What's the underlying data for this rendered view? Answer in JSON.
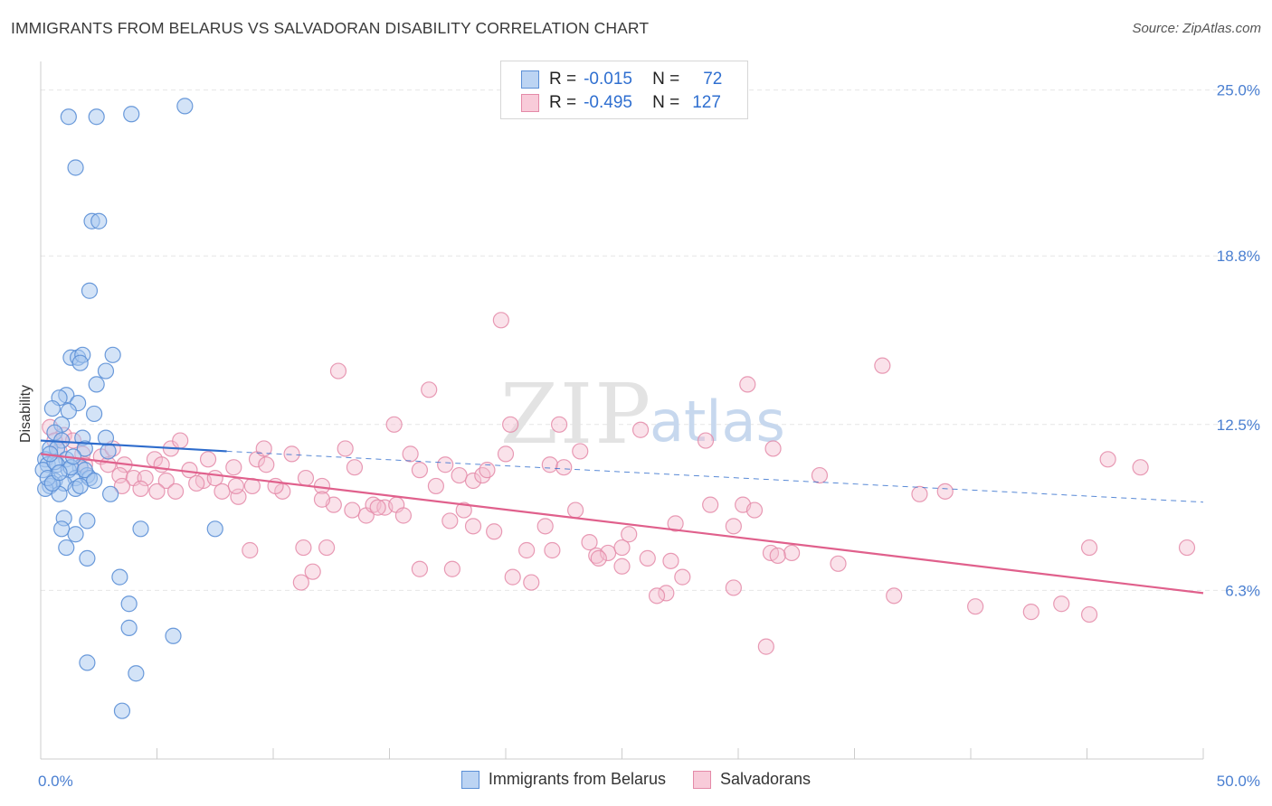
{
  "title": "IMMIGRANTS FROM BELARUS VS SALVADORAN DISABILITY CORRELATION CHART",
  "source": "Source: ZipAtlas.com",
  "watermark": {
    "zip": "ZIP",
    "atlas": "atlas"
  },
  "colors": {
    "blue_fill": "#a8c8f0",
    "blue_stroke": "#5b8fd6",
    "blue_line": "#2e6ccc",
    "pink_fill": "#f5bfd0",
    "pink_stroke": "#e48aa8",
    "pink_line": "#e0608c",
    "grid": "#e6e6e6",
    "tick_text": "#4a7fd1"
  },
  "legend": {
    "r_label": "R =",
    "n_label": "N =",
    "series": [
      {
        "r": "-0.015",
        "n": "72"
      },
      {
        "r": "-0.495",
        "n": "127"
      }
    ]
  },
  "bottom_legend": [
    "Immigrants from Belarus",
    "Salvadorans"
  ],
  "chart_data": {
    "type": "scatter",
    "title": "IMMIGRANTS FROM BELARUS VS SALVADORAN DISABILITY CORRELATION CHART",
    "xlabel": "",
    "ylabel": "Disability",
    "xlim": [
      0,
      50
    ],
    "ylim": [
      0,
      26
    ],
    "x_tick_labels": [
      "0.0%",
      "50.0%"
    ],
    "y_ticks": [
      6.3,
      12.5,
      18.8,
      25.0
    ],
    "y_tick_labels": [
      "6.3%",
      "12.5%",
      "18.8%",
      "25.0%"
    ],
    "grid": true,
    "legend_position": "top-center",
    "series": [
      {
        "name": "Immigrants from Belarus",
        "r": -0.015,
        "n": 72,
        "trend_solid": [
          [
            0,
            11.9
          ],
          [
            8,
            11.5
          ]
        ],
        "trend_dashed": [
          [
            8,
            11.5
          ],
          [
            50,
            9.6
          ]
        ],
        "points": [
          [
            1.2,
            24.0
          ],
          [
            2.4,
            24.0
          ],
          [
            3.9,
            24.1
          ],
          [
            6.2,
            24.4
          ],
          [
            1.5,
            22.1
          ],
          [
            2.2,
            20.1
          ],
          [
            2.5,
            20.1
          ],
          [
            2.1,
            17.5
          ],
          [
            1.3,
            15.0
          ],
          [
            1.6,
            15.0
          ],
          [
            1.8,
            15.1
          ],
          [
            3.1,
            15.1
          ],
          [
            1.7,
            14.8
          ],
          [
            2.8,
            14.5
          ],
          [
            2.4,
            14.0
          ],
          [
            1.1,
            13.6
          ],
          [
            0.8,
            13.5
          ],
          [
            1.6,
            13.3
          ],
          [
            0.5,
            13.1
          ],
          [
            1.2,
            13.0
          ],
          [
            2.3,
            12.9
          ],
          [
            0.9,
            12.5
          ],
          [
            0.6,
            12.2
          ],
          [
            0.9,
            11.9
          ],
          [
            1.8,
            12.0
          ],
          [
            2.8,
            12.0
          ],
          [
            0.4,
            11.6
          ],
          [
            0.7,
            11.6
          ],
          [
            1.9,
            11.6
          ],
          [
            2.9,
            11.5
          ],
          [
            0.2,
            11.2
          ],
          [
            1.1,
            11.2
          ],
          [
            0.3,
            11.0
          ],
          [
            0.7,
            11.0
          ],
          [
            1.7,
            10.9
          ],
          [
            0.1,
            10.8
          ],
          [
            1.2,
            10.8
          ],
          [
            1.5,
            10.5
          ],
          [
            2.0,
            10.6
          ],
          [
            0.6,
            10.4
          ],
          [
            0.4,
            10.2
          ],
          [
            1.0,
            10.3
          ],
          [
            2.1,
            10.5
          ],
          [
            1.5,
            10.1
          ],
          [
            0.2,
            10.1
          ],
          [
            0.8,
            9.9
          ],
          [
            3.0,
            9.9
          ],
          [
            1.0,
            9.0
          ],
          [
            2.0,
            8.9
          ],
          [
            0.9,
            8.6
          ],
          [
            4.3,
            8.6
          ],
          [
            7.5,
            8.6
          ],
          [
            1.5,
            8.4
          ],
          [
            1.1,
            7.9
          ],
          [
            2.0,
            7.5
          ],
          [
            3.4,
            6.8
          ],
          [
            3.8,
            5.8
          ],
          [
            3.8,
            4.9
          ],
          [
            5.7,
            4.6
          ],
          [
            2.0,
            3.6
          ],
          [
            4.1,
            3.2
          ],
          [
            3.5,
            1.8
          ],
          [
            0.3,
            10.5
          ],
          [
            1.3,
            10.9
          ],
          [
            0.5,
            10.3
          ],
          [
            1.9,
            10.8
          ],
          [
            0.6,
            11.1
          ],
          [
            1.4,
            11.3
          ],
          [
            2.3,
            10.4
          ],
          [
            0.8,
            10.7
          ],
          [
            1.7,
            10.2
          ],
          [
            0.4,
            11.4
          ]
        ]
      },
      {
        "name": "Salvadorans",
        "r": -0.495,
        "n": 127,
        "trend": [
          [
            0,
            11.4
          ],
          [
            50,
            6.2
          ]
        ],
        "points": [
          [
            0.4,
            12.4
          ],
          [
            1.0,
            12.1
          ],
          [
            0.6,
            11.9
          ],
          [
            1.4,
            11.9
          ],
          [
            0.8,
            11.5
          ],
          [
            1.8,
            11.4
          ],
          [
            2.6,
            11.3
          ],
          [
            3.1,
            11.6
          ],
          [
            1.9,
            11.0
          ],
          [
            2.9,
            11.0
          ],
          [
            3.6,
            11.0
          ],
          [
            4.9,
            11.2
          ],
          [
            5.6,
            11.6
          ],
          [
            5.2,
            11.0
          ],
          [
            6.0,
            11.9
          ],
          [
            7.2,
            11.2
          ],
          [
            8.3,
            10.9
          ],
          [
            9.3,
            11.2
          ],
          [
            9.6,
            11.6
          ],
          [
            10.8,
            11.4
          ],
          [
            3.4,
            10.6
          ],
          [
            4.0,
            10.5
          ],
          [
            4.5,
            10.5
          ],
          [
            5.4,
            10.4
          ],
          [
            6.4,
            10.8
          ],
          [
            7.0,
            10.4
          ],
          [
            7.5,
            10.5
          ],
          [
            3.5,
            10.2
          ],
          [
            4.3,
            10.1
          ],
          [
            5.0,
            10.0
          ],
          [
            5.8,
            10.0
          ],
          [
            6.7,
            10.3
          ],
          [
            7.8,
            10.0
          ],
          [
            8.5,
            9.8
          ],
          [
            9.1,
            10.2
          ],
          [
            10.4,
            10.0
          ],
          [
            11.4,
            10.5
          ],
          [
            12.1,
            10.2
          ],
          [
            12.6,
            9.5
          ],
          [
            13.1,
            11.6
          ],
          [
            13.5,
            10.9
          ],
          [
            14.0,
            9.1
          ],
          [
            14.3,
            9.5
          ],
          [
            14.8,
            9.4
          ],
          [
            15.3,
            9.5
          ],
          [
            15.9,
            11.4
          ],
          [
            16.3,
            10.8
          ],
          [
            17.0,
            10.2
          ],
          [
            17.4,
            11.0
          ],
          [
            18.0,
            10.6
          ],
          [
            18.6,
            10.4
          ],
          [
            19.0,
            10.6
          ],
          [
            17.6,
            8.9
          ],
          [
            18.6,
            8.7
          ],
          [
            19.5,
            8.5
          ],
          [
            20.0,
            11.4
          ],
          [
            21.7,
            8.7
          ],
          [
            20.9,
            7.8
          ],
          [
            22.0,
            7.8
          ],
          [
            21.9,
            11.0
          ],
          [
            22.5,
            10.9
          ],
          [
            23.0,
            9.3
          ],
          [
            23.6,
            8.1
          ],
          [
            23.9,
            7.6
          ],
          [
            24.4,
            7.7
          ],
          [
            25.0,
            7.9
          ],
          [
            25.3,
            8.4
          ],
          [
            25.0,
            7.2
          ],
          [
            24.0,
            7.5
          ],
          [
            26.1,
            7.5
          ],
          [
            27.1,
            7.4
          ],
          [
            27.6,
            6.8
          ],
          [
            26.9,
            6.2
          ],
          [
            26.5,
            6.1
          ],
          [
            27.3,
            8.8
          ],
          [
            28.8,
            9.5
          ],
          [
            29.8,
            8.7
          ],
          [
            30.2,
            9.5
          ],
          [
            29.8,
            6.4
          ],
          [
            30.7,
            9.3
          ],
          [
            31.4,
            7.7
          ],
          [
            31.5,
            11.6
          ],
          [
            32.3,
            7.7
          ],
          [
            31.7,
            7.6
          ],
          [
            33.5,
            10.6
          ],
          [
            34.3,
            7.3
          ],
          [
            36.7,
            6.1
          ],
          [
            36.2,
            14.7
          ],
          [
            30.4,
            14.0
          ],
          [
            28.6,
            11.9
          ],
          [
            15.2,
            12.5
          ],
          [
            20.2,
            12.5
          ],
          [
            25.8,
            12.3
          ],
          [
            37.8,
            9.9
          ],
          [
            38.9,
            10.0
          ],
          [
            40.2,
            5.7
          ],
          [
            42.6,
            5.5
          ],
          [
            45.1,
            5.4
          ],
          [
            45.9,
            11.2
          ],
          [
            47.3,
            10.9
          ],
          [
            43.9,
            5.8
          ],
          [
            45.1,
            7.9
          ],
          [
            49.3,
            7.9
          ],
          [
            23.2,
            11.5
          ],
          [
            12.1,
            9.7
          ],
          [
            11.3,
            7.9
          ],
          [
            11.2,
            6.6
          ],
          [
            11.7,
            7.0
          ],
          [
            21.1,
            6.6
          ],
          [
            22.3,
            12.5
          ],
          [
            19.2,
            10.8
          ],
          [
            18.2,
            9.3
          ],
          [
            15.6,
            9.1
          ],
          [
            14.5,
            9.4
          ],
          [
            13.4,
            9.3
          ],
          [
            12.3,
            7.9
          ],
          [
            16.3,
            7.1
          ],
          [
            17.7,
            7.1
          ],
          [
            20.3,
            6.8
          ],
          [
            31.2,
            4.2
          ],
          [
            12.8,
            14.5
          ],
          [
            16.7,
            13.8
          ],
          [
            19.8,
            16.4
          ],
          [
            9.7,
            11.0
          ],
          [
            8.4,
            10.2
          ],
          [
            10.1,
            10.2
          ],
          [
            9.0,
            7.8
          ]
        ]
      }
    ]
  }
}
